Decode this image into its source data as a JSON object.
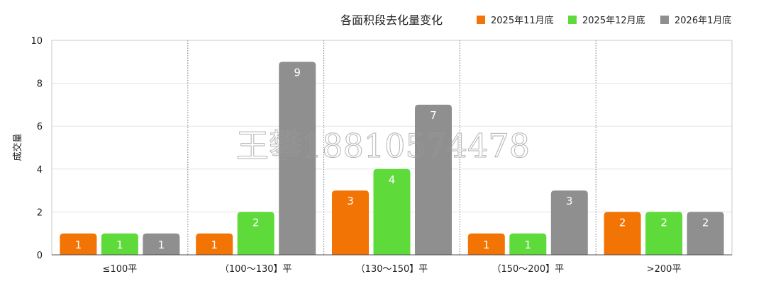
{
  "chart_data": {
    "type": "bar",
    "title": "各面积段去化量变化",
    "ylabel": "成交量",
    "xlabel": "",
    "ylim": [
      0,
      10
    ],
    "yticks": [
      0,
      2,
      4,
      6,
      8,
      10
    ],
    "grid": true,
    "legend_position": "top-right",
    "categories": [
      "≤100平",
      "（100～130】平",
      "（130～150】平",
      "（150～200】平",
      ">200平"
    ],
    "series": [
      {
        "name": "2025年11月底",
        "color": "#F27405",
        "values": [
          1,
          1,
          3,
          1,
          2
        ]
      },
      {
        "name": "2025年12月底",
        "color": "#5EDB3A",
        "values": [
          1,
          2,
          4,
          1,
          2
        ]
      },
      {
        "name": "2026年1月底",
        "color": "#8F8F8F",
        "values": [
          1,
          9,
          7,
          3,
          2
        ]
      }
    ],
    "watermark": "王攀18810574478"
  }
}
